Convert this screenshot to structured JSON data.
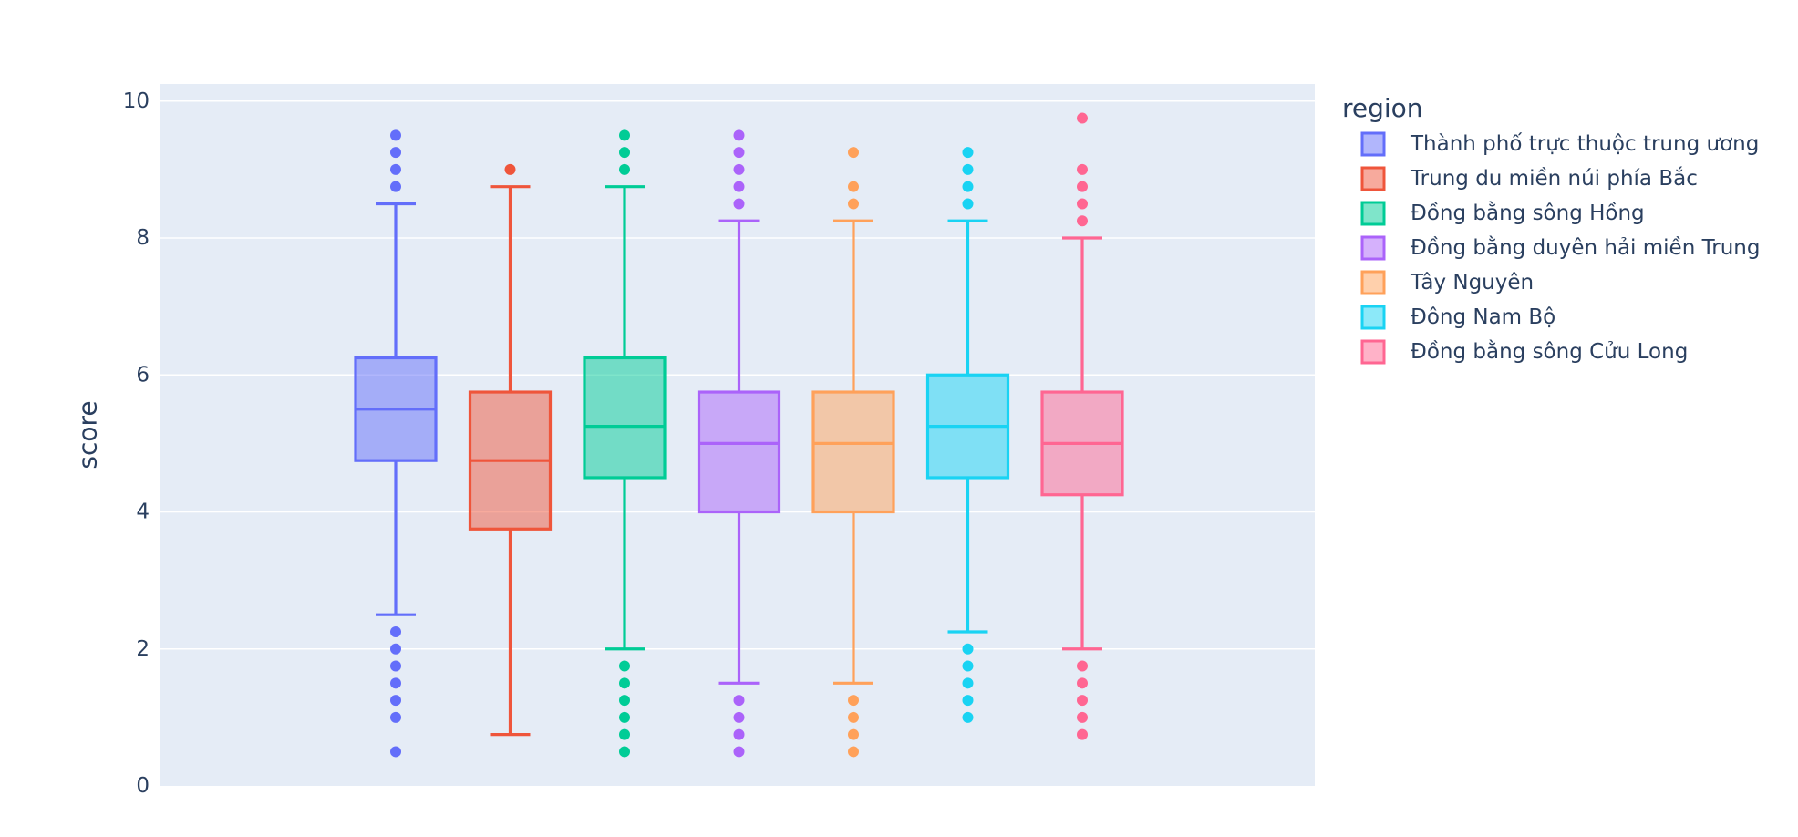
{
  "chart_data": {
    "type": "box",
    "title": "",
    "xlabel": "",
    "ylabel": "score",
    "ylim": [
      0,
      10.25
    ],
    "yticks": [
      0,
      2,
      4,
      6,
      8,
      10
    ],
    "grid": true,
    "legend_title": "region",
    "legend_position": "right",
    "series": [
      {
        "name": "Thành phố trực thuộc trung ương",
        "color": "#636efa",
        "lowerfence": 2.5,
        "q1": 4.75,
        "median": 5.5,
        "q3": 6.25,
        "upperfence": 8.5,
        "outliers": [
          0.5,
          1,
          1.25,
          1.5,
          1.75,
          2,
          2.25,
          8.75,
          9,
          9.25,
          9.5
        ]
      },
      {
        "name": "Trung du miền núi phía Bắc",
        "color": "#ef553b",
        "lowerfence": 0.75,
        "q1": 3.75,
        "median": 4.75,
        "q3": 5.75,
        "upperfence": 8.75,
        "outliers": [
          9
        ]
      },
      {
        "name": "Đồng bằng sông Hồng",
        "color": "#00cc96",
        "lowerfence": 2,
        "q1": 4.5,
        "median": 5.25,
        "q3": 6.25,
        "upperfence": 8.75,
        "outliers": [
          0.5,
          0.75,
          1,
          1.25,
          1.5,
          1.75,
          9,
          9.25,
          9.5
        ]
      },
      {
        "name": "Đồng bằng duyên hải miền Trung",
        "color": "#ab63fa",
        "lowerfence": 1.5,
        "q1": 4,
        "median": 5,
        "q3": 5.75,
        "upperfence": 8.25,
        "outliers": [
          0.5,
          0.75,
          1,
          1.25,
          8.5,
          8.75,
          9,
          9.25,
          9.5
        ]
      },
      {
        "name": "Tây Nguyên",
        "color": "#ffa15a",
        "lowerfence": 1.5,
        "q1": 4,
        "median": 5,
        "q3": 5.75,
        "upperfence": 8.25,
        "outliers": [
          0.5,
          0.75,
          1,
          1.25,
          8.5,
          8.75,
          9.25
        ]
      },
      {
        "name": "Đông Nam Bộ",
        "color": "#19d3f3",
        "lowerfence": 2.25,
        "q1": 4.5,
        "median": 5.25,
        "q3": 6,
        "upperfence": 8.25,
        "outliers": [
          1,
          1.25,
          1.5,
          1.75,
          2,
          8.5,
          8.75,
          9,
          9.25
        ]
      },
      {
        "name": "Đồng bằng sông Cửu Long",
        "color": "#ff6692",
        "lowerfence": 2,
        "q1": 4.25,
        "median": 5,
        "q3": 5.75,
        "upperfence": 8,
        "outliers": [
          0.75,
          1,
          1.25,
          1.5,
          1.75,
          8.25,
          8.5,
          8.75,
          9,
          9.75
        ]
      }
    ]
  }
}
